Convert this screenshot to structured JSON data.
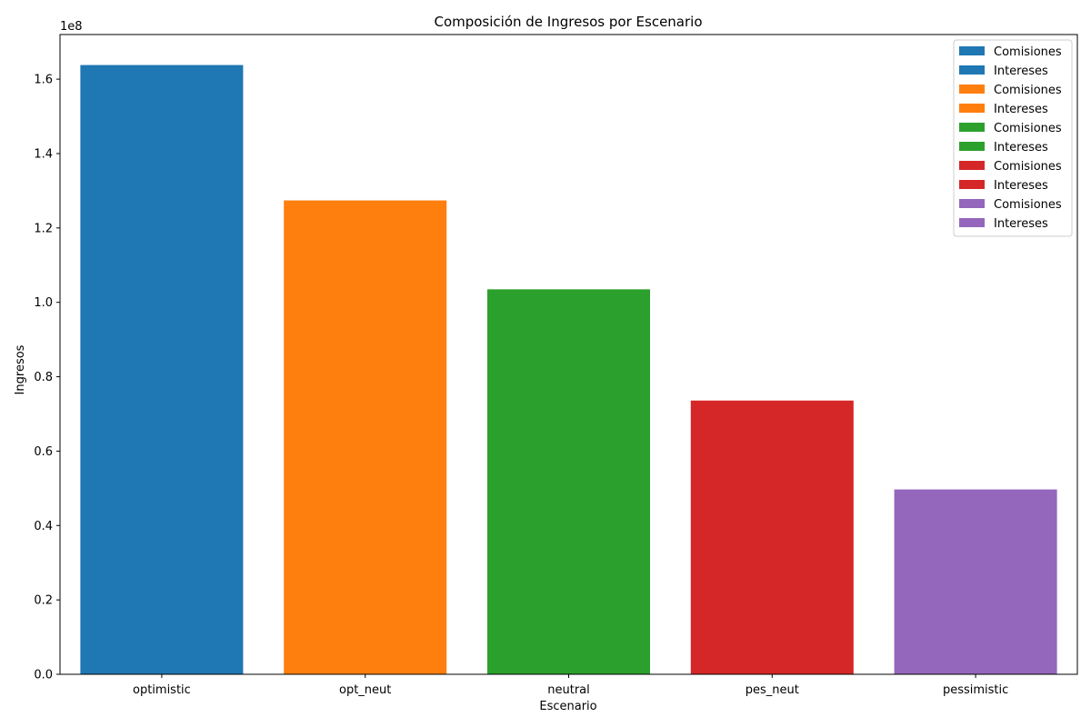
{
  "chart_data": {
    "type": "bar",
    "stacked": true,
    "title": "Composición de Ingresos por Escenario",
    "xlabel": "Escenario",
    "ylabel": "Ingresos",
    "y_exponent_label": "1e8",
    "ylim": [
      0,
      172000000
    ],
    "y_ticks": [
      0,
      20000000,
      40000000,
      60000000,
      80000000,
      100000000,
      120000000,
      140000000,
      160000000
    ],
    "y_tick_labels": [
      "0.0",
      "0.2",
      "0.4",
      "0.6",
      "0.8",
      "1.0",
      "1.2",
      "1.4",
      "1.6"
    ],
    "categories": [
      "optimistic",
      "opt_neut",
      "neutral",
      "pes_neut",
      "pessimistic"
    ],
    "colors": [
      "#1f77b4",
      "#ff7f0e",
      "#2ca02c",
      "#d62728",
      "#9467bd"
    ],
    "series": [
      {
        "name": "Comisiones",
        "values": [
          0,
          0,
          0,
          0,
          0
        ]
      },
      {
        "name": "Intereses",
        "values": [
          163800000,
          127400000,
          103500000,
          73600000,
          49700000
        ]
      }
    ],
    "legend": {
      "location": "top-right",
      "entries": [
        {
          "label": "Comisiones",
          "color": "#1f77b4"
        },
        {
          "label": "Intereses",
          "color": "#1f77b4"
        },
        {
          "label": "Comisiones",
          "color": "#ff7f0e"
        },
        {
          "label": "Intereses",
          "color": "#ff7f0e"
        },
        {
          "label": "Comisiones",
          "color": "#2ca02c"
        },
        {
          "label": "Intereses",
          "color": "#2ca02c"
        },
        {
          "label": "Comisiones",
          "color": "#d62728"
        },
        {
          "label": "Intereses",
          "color": "#d62728"
        },
        {
          "label": "Comisiones",
          "color": "#9467bd"
        },
        {
          "label": "Intereses",
          "color": "#9467bd"
        }
      ]
    }
  }
}
